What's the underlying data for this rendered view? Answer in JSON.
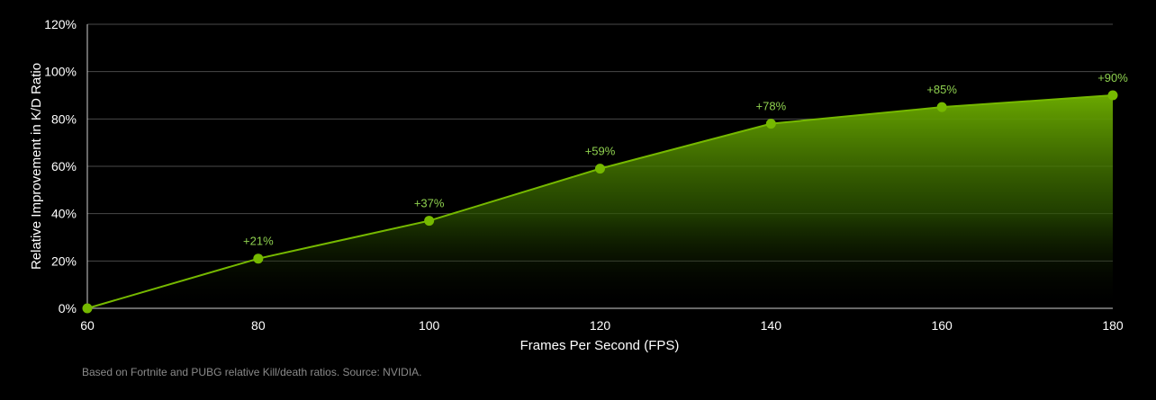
{
  "chart_data": {
    "type": "area",
    "title": "",
    "xlabel": "Frames Per Second (FPS)",
    "ylabel": "Relative Improvement in K/D Ratio",
    "x": [
      60,
      80,
      100,
      120,
      140,
      160,
      180
    ],
    "values": [
      0,
      21,
      37,
      59,
      78,
      85,
      90
    ],
    "data_labels": [
      "",
      "+21%",
      "+37%",
      "+59%",
      "+78%",
      "+85%",
      "+90%"
    ],
    "x_ticks": [
      60,
      80,
      100,
      120,
      140,
      160,
      180
    ],
    "x_tick_labels": [
      "60",
      "80",
      "100",
      "120",
      "140",
      "160",
      "180"
    ],
    "y_ticks": [
      0,
      20,
      40,
      60,
      80,
      100,
      120
    ],
    "y_tick_labels": [
      "0%",
      "20%",
      "40%",
      "60%",
      "80%",
      "100%",
      "120%"
    ],
    "xlim": [
      60,
      180
    ],
    "ylim": [
      0,
      120
    ],
    "grid": "horizontal",
    "legend": "none",
    "colors": {
      "line": "#76b900",
      "label": "#8fd14f",
      "background": "#000000",
      "grid": "#4a4a4a"
    }
  },
  "footnote": "Based on Fortnite and PUBG relative Kill/death ratios. Source: NVIDIA."
}
